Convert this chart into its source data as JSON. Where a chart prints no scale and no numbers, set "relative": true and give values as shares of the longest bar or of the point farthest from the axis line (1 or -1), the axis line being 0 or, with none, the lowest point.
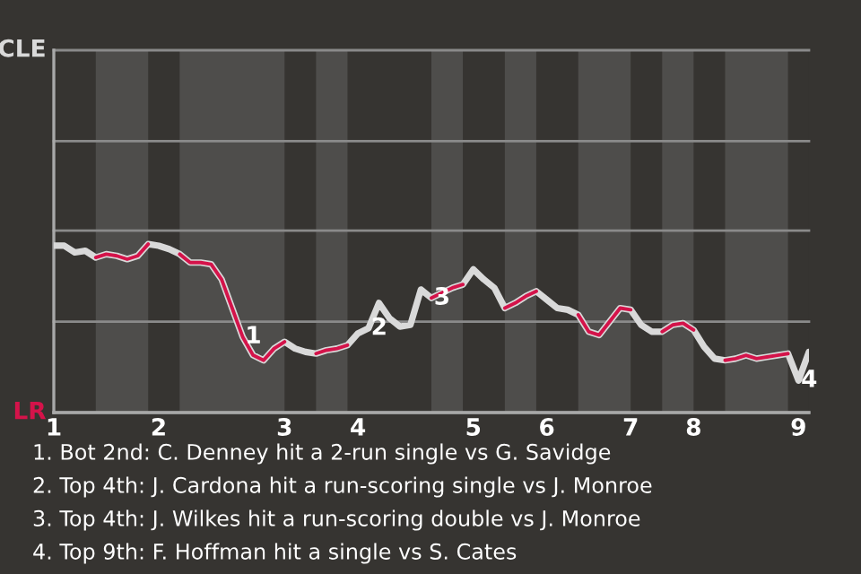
{
  "chart_data": {
    "type": "line",
    "relative": true,
    "categories": [
      "1",
      null,
      null,
      null,
      null,
      null,
      null,
      null,
      null,
      null,
      "2",
      null,
      null,
      null,
      null,
      null,
      null,
      null,
      null,
      null,
      null,
      null,
      "3",
      null,
      null,
      null,
      null,
      null,
      null,
      "4",
      null,
      null,
      null,
      null,
      null,
      null,
      null,
      null,
      null,
      null,
      "5",
      null,
      null,
      null,
      null,
      null,
      null,
      "6",
      null,
      null,
      null,
      null,
      null,
      null,
      null,
      "7",
      null,
      null,
      null,
      null,
      null,
      "8",
      null,
      null,
      null,
      null,
      null,
      null,
      null,
      null,
      null,
      "9",
      null
    ],
    "series": [
      {
        "color": "#d9d9d9",
        "values": [
          0.99,
          0.99,
          0.95,
          0.96,
          0.92,
          0.94,
          0.93,
          0.91,
          0.93,
          1.0,
          0.99,
          0.97,
          0.94,
          0.89,
          0.89,
          0.88,
          0.79,
          0.62,
          0.45,
          0.34,
          0.31,
          0.38,
          0.42,
          0.38,
          0.36,
          0.35,
          0.37,
          0.38,
          0.4,
          0.47,
          0.5,
          0.65,
          0.56,
          0.51,
          0.52,
          0.73,
          0.68,
          0.71,
          0.74,
          0.76,
          0.85,
          0.79,
          0.74,
          0.62,
          0.65,
          0.69,
          0.72,
          0.67,
          0.62,
          0.61,
          0.58,
          0.48,
          0.46,
          0.54,
          0.62,
          0.61,
          0.52,
          0.48,
          0.48,
          0.52,
          0.53,
          0.49,
          0.39,
          0.32,
          0.31,
          0.32,
          0.34,
          0.32,
          0.33,
          0.34,
          0.35,
          0.19,
          0.36
        ]
      },
      {
        "color": "#d4134a",
        "values": [
          null,
          null,
          null,
          null,
          0.92,
          0.94,
          0.93,
          0.91,
          0.93,
          1.0,
          null,
          null,
          0.94,
          0.89,
          0.89,
          0.88,
          0.79,
          0.62,
          0.45,
          0.34,
          0.31,
          0.38,
          0.42,
          null,
          null,
          0.35,
          0.37,
          0.38,
          0.4,
          null,
          null,
          null,
          null,
          null,
          null,
          null,
          0.68,
          0.71,
          0.74,
          0.76,
          null,
          null,
          null,
          0.62,
          0.65,
          0.69,
          0.72,
          null,
          null,
          null,
          0.58,
          0.48,
          0.46,
          0.54,
          0.62,
          0.61,
          null,
          null,
          0.48,
          0.52,
          0.53,
          0.49,
          null,
          null,
          0.31,
          0.32,
          0.34,
          0.32,
          0.33,
          0.34,
          0.35,
          null,
          null
        ]
      }
    ],
    "ref_lines": [
      {
        "axis": "y",
        "value": 0,
        "label": "LR"
      },
      {
        "axis": "y",
        "value": 0.54
      },
      {
        "axis": "y",
        "value": 1.08
      },
      {
        "axis": "y",
        "value": 1.61
      },
      {
        "axis": "y",
        "value": 2.15,
        "label": "CLE"
      }
    ],
    "line_style": "solid",
    "marker": "none",
    "annotations": [
      {
        "text": "1",
        "y": 0.45
      },
      {
        "text": "2",
        "y": 0.5
      },
      {
        "text": "3",
        "y": 0.68
      },
      {
        "text": "4",
        "y": 0.19
      },
      "1. Bot 2nd: C. Denney hit a 2-run single vs G. Savidge",
      "2. Top 4th: J. Cardona hit a run-scoring single vs J. Monroe",
      "3. Top 4th: J. Wilkes hit a run-scoring double vs J. Monroe",
      "4. Top 9th: F. Hoffman hit a single vs S. Cates"
    ]
  }
}
